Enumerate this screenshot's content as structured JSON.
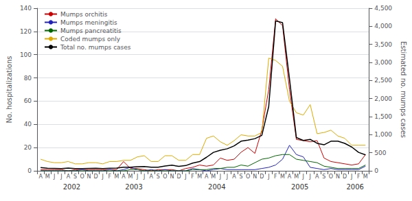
{
  "chart_data": {
    "type": "line",
    "ylabel": "No. hospitalizations",
    "y2label": "Estimated no. mumps cases",
    "categories": [
      "A",
      "M",
      "J",
      "J",
      "A",
      "S",
      "O",
      "N",
      "D",
      "J",
      "F",
      "M",
      "A",
      "M",
      "J",
      "J",
      "A",
      "S",
      "O",
      "N",
      "D",
      "J",
      "F",
      "M",
      "A",
      "M",
      "J",
      "J",
      "A",
      "S",
      "O",
      "N",
      "D",
      "J",
      "F",
      "M",
      "A",
      "M",
      "J",
      "J",
      "A",
      "S",
      "O",
      "N",
      "D",
      "J",
      "F",
      "M"
    ],
    "ylim": [
      0,
      140
    ],
    "yticks": [
      0,
      20,
      40,
      60,
      80,
      100,
      120,
      140
    ],
    "y2lim": [
      0,
      4500
    ],
    "y2ticks": [
      0,
      500,
      1000,
      1500,
      2000,
      2500,
      3000,
      3500,
      4000,
      4500
    ],
    "grid": true,
    "legend": "upper left",
    "annotations": [
      {
        "text": "2002",
        "x": 4.5
      },
      {
        "text": "2003",
        "x": 13.5
      },
      {
        "text": "2004",
        "x": 25.5
      },
      {
        "text": "2005",
        "x": 37.5
      },
      {
        "text": "2006",
        "x": 45.5
      }
    ],
    "series": [
      {
        "name": "Mumps orchitis",
        "color": "#cc0000",
        "values": [
          1,
          1,
          1,
          1,
          0,
          1,
          1,
          1,
          1,
          1,
          1,
          1,
          8,
          2,
          2,
          1,
          0,
          1,
          1,
          1,
          0,
          2,
          3,
          5,
          4,
          5,
          11,
          9,
          10,
          16,
          20,
          15,
          35,
          70,
          131,
          125,
          70,
          27,
          26,
          25,
          26,
          11,
          8,
          7,
          6,
          5,
          6,
          14
        ]
      },
      {
        "name": "Mumps meningitis",
        "color": "#2222bb",
        "values": [
          0,
          0,
          0,
          0,
          0,
          0,
          1,
          0,
          0,
          0,
          1,
          0,
          1,
          3,
          1,
          0,
          1,
          0,
          1,
          0,
          0,
          0,
          2,
          1,
          0,
          1,
          2,
          1,
          1,
          1,
          1,
          1,
          2,
          3,
          5,
          10,
          22,
          14,
          12,
          3,
          2,
          1,
          2,
          1,
          1,
          1,
          1,
          4
        ]
      },
      {
        "name": "Mumps pancreatitis",
        "color": "#006600",
        "values": [
          0,
          0,
          0,
          0,
          0,
          0,
          0,
          0,
          0,
          0,
          0,
          0,
          0,
          1,
          1,
          0,
          0,
          0,
          0,
          0,
          0,
          0,
          1,
          1,
          1,
          2,
          2,
          3,
          3,
          5,
          4,
          7,
          10,
          11,
          13,
          14,
          14,
          10,
          9,
          8,
          7,
          4,
          3,
          2,
          2,
          2,
          2,
          5
        ]
      },
      {
        "name": "Coded mumps only",
        "color": "#ddaa00",
        "values": [
          10,
          8,
          7,
          7,
          8,
          6,
          6,
          7,
          7,
          6,
          8,
          8,
          9,
          9,
          12,
          13,
          8,
          8,
          13,
          13,
          9,
          9,
          14,
          14,
          28,
          30,
          25,
          22,
          26,
          31,
          30,
          30,
          33,
          97,
          95,
          90,
          60,
          50,
          48,
          57,
          32,
          33,
          35,
          30,
          28,
          22,
          22,
          22
        ]
      },
      {
        "name": "Total no. mumps cases",
        "color": "#000000",
        "axis": "y2",
        "values": [
          90,
          70,
          65,
          60,
          75,
          60,
          60,
          65,
          70,
          60,
          70,
          75,
          100,
          100,
          115,
          120,
          100,
          100,
          135,
          155,
          125,
          145,
          215,
          255,
          375,
          510,
          570,
          610,
          690,
          820,
          850,
          890,
          980,
          1780,
          4150,
          4100,
          2550,
          920,
          840,
          870,
          760,
          720,
          820,
          820,
          760,
          660,
          510,
          440
        ]
      }
    ]
  }
}
